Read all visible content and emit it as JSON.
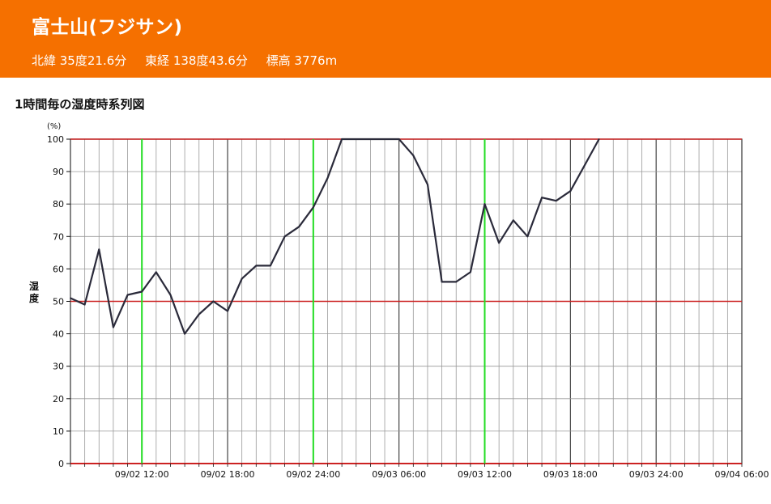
{
  "header": {
    "mountain": "富士山(フジサン)",
    "latitude": "北緯 35度21.6分",
    "longitude": "東経 138度43.6分",
    "elevation": "標高 3776m"
  },
  "chart_title": "1時間毎の湿度時系列図",
  "colors": {
    "header_bg": "#f57000",
    "line": "#2a2a3a",
    "major_grid": "#333333",
    "minor_grid": "#999999",
    "red_line": "#cc2222",
    "green_line": "#22dd22"
  },
  "chart_data": {
    "type": "line",
    "title": "1時間毎の湿度時系列図",
    "ylabel": "湿度",
    "yunit": "(%)",
    "ylim": [
      0,
      100
    ],
    "yticks": [
      0,
      10,
      20,
      30,
      40,
      50,
      60,
      70,
      80,
      90,
      100
    ],
    "xlim": [
      "09/02 07:00",
      "09/04 06:00"
    ],
    "xtick_labels": [
      "09/02 12:00",
      "09/02 18:00",
      "09/02 24:00",
      "09/03 06:00",
      "09/03 12:00",
      "09/03 18:00",
      "09/03 24:00",
      "09/04 06:00"
    ],
    "xtick_hours": [
      12,
      18,
      24,
      30,
      36,
      42,
      48,
      54
    ],
    "x_start_hour": 7,
    "grid": true,
    "reference_lines": [
      50,
      100
    ],
    "highlight_hours": [
      12,
      24,
      36
    ],
    "series": [
      {
        "hours": [
          7,
          8,
          9,
          10,
          11,
          12,
          13,
          14,
          15,
          16,
          17,
          18,
          19,
          20,
          21,
          22,
          23,
          24,
          25,
          26,
          27,
          28,
          29,
          30,
          31,
          32,
          33,
          34,
          35,
          36,
          37,
          38,
          39,
          40,
          41,
          42,
          43,
          44
        ],
        "values": [
          51,
          49,
          66,
          42,
          52,
          53,
          59,
          52,
          40,
          46,
          50,
          47,
          57,
          61,
          61,
          70,
          73,
          79,
          88,
          100,
          100,
          100,
          100,
          100,
          95,
          86,
          56,
          56,
          59,
          80,
          68,
          75,
          70,
          82,
          81,
          84,
          92,
          100
        ]
      }
    ]
  }
}
